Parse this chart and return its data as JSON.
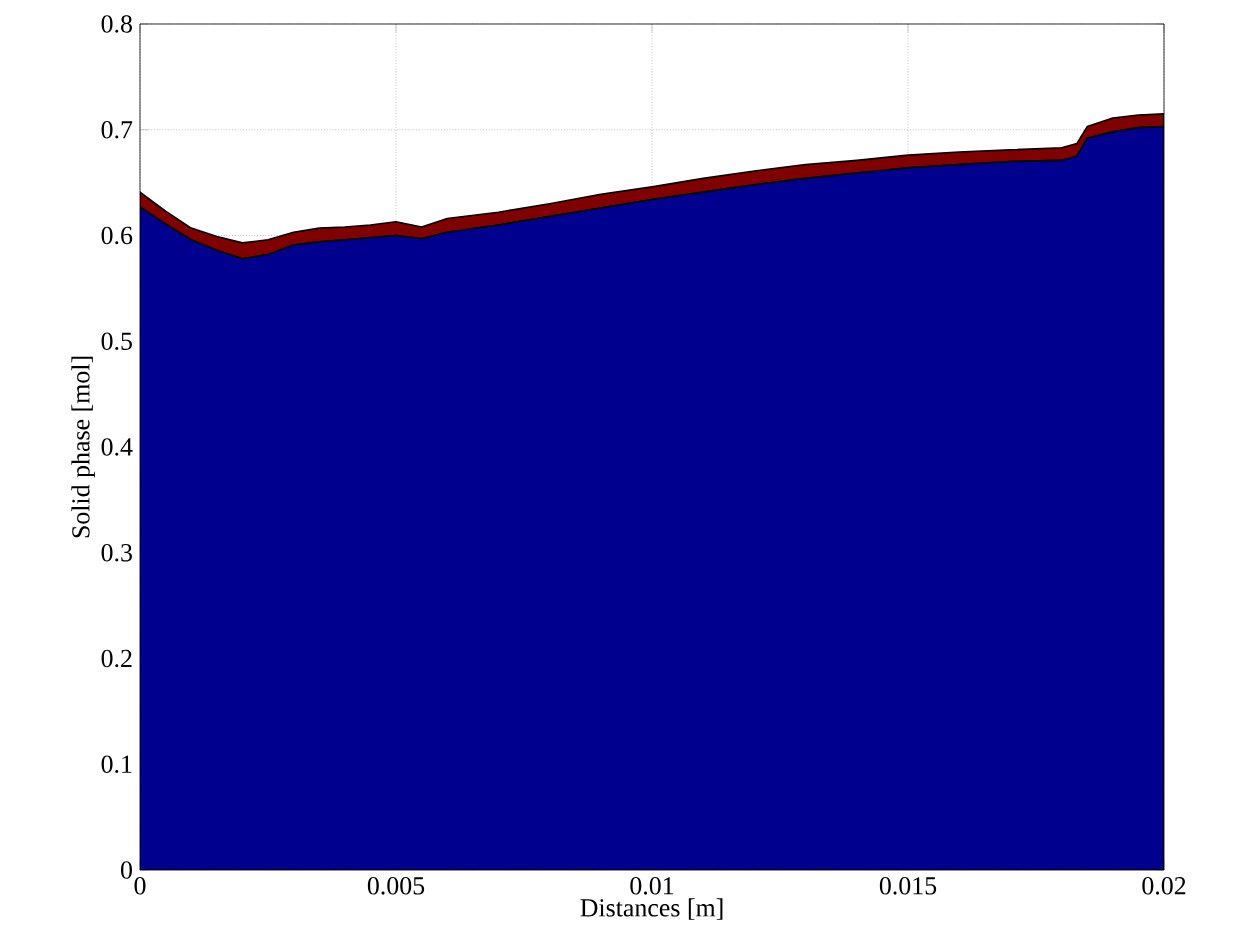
{
  "chart_data": {
    "type": "area",
    "stacked": true,
    "xlabel": "Distances [m]",
    "ylabel": "Solid phase [mol]",
    "x": [
      0,
      0.0005,
      0.001,
      0.0015,
      0.002,
      0.0025,
      0.003,
      0.0035,
      0.004,
      0.0045,
      0.005,
      0.0055,
      0.006,
      0.007,
      0.008,
      0.009,
      0.01,
      0.011,
      0.012,
      0.013,
      0.014,
      0.015,
      0.016,
      0.017,
      0.018,
      0.0183,
      0.0185,
      0.019,
      0.0195,
      0.02
    ],
    "series": [
      {
        "color": "#00008f",
        "values": [
          0.627,
          0.611,
          0.596,
          0.586,
          0.578,
          0.582,
          0.591,
          0.594,
          0.596,
          0.598,
          0.6,
          0.597,
          0.603,
          0.61,
          0.618,
          0.626,
          0.634,
          0.641,
          0.648,
          0.654,
          0.659,
          0.664,
          0.667,
          0.67,
          0.671,
          0.675,
          0.692,
          0.698,
          0.702,
          0.703
        ]
      },
      {
        "color": "#800000",
        "values": [
          0.014,
          0.012,
          0.011,
          0.013,
          0.015,
          0.014,
          0.012,
          0.013,
          0.012,
          0.012,
          0.013,
          0.011,
          0.013,
          0.012,
          0.012,
          0.013,
          0.012,
          0.013,
          0.013,
          0.013,
          0.012,
          0.012,
          0.012,
          0.011,
          0.012,
          0.012,
          0.011,
          0.013,
          0.012,
          0.012
        ]
      }
    ],
    "xlim": [
      0,
      0.02
    ],
    "ylim": [
      0,
      0.8
    ],
    "xticks": [
      0,
      0.005,
      0.01,
      0.015,
      0.02
    ],
    "yticks": [
      0,
      0.1,
      0.2,
      0.3,
      0.4,
      0.5,
      0.6,
      0.7,
      0.8
    ],
    "grid": true
  }
}
